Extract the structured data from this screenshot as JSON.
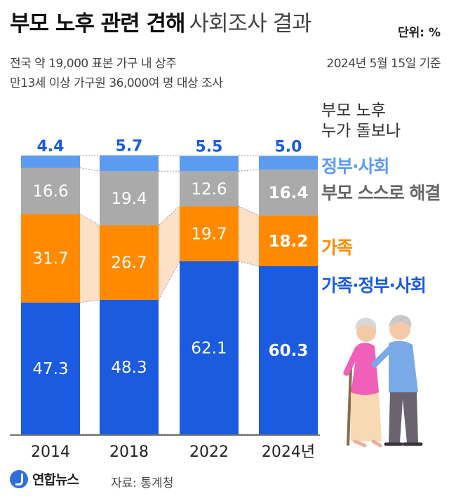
{
  "header": {
    "title_main": "부모 노후 관련 견해",
    "title_sub": "사회조사 결과",
    "unit": "단위: %",
    "desc_line1": "전국 약 19,000 표본 가구 내 상주",
    "desc_line2": "만13세 이상 가구원 36,000여 명 대상 조사",
    "date": "2024년 5월 15일 기준"
  },
  "legend": {
    "question_line1": "부모 노후",
    "question_line2": "누가 돌보나"
  },
  "colors": {
    "gov_society": "#5b9bf0",
    "self": "#aaaaaa",
    "family": "#ff8a00",
    "family_gov_society": "#1a5be0",
    "connector_family": "#fde0c6"
  },
  "chart_data": {
    "type": "bar",
    "stacked": true,
    "categories": [
      "2014",
      "2018",
      "2022",
      "2024년"
    ],
    "series": [
      {
        "name": "가족·정부·사회",
        "color": "#1a5be0",
        "values": [
          47.3,
          48.3,
          62.1,
          60.3
        ]
      },
      {
        "name": "가족",
        "color": "#ff8a00",
        "values": [
          31.7,
          26.7,
          19.7,
          18.2
        ]
      },
      {
        "name": "부모 스스로 해결",
        "color": "#aaaaaa",
        "values": [
          16.6,
          19.4,
          12.6,
          16.4
        ]
      },
      {
        "name": "정부·사회",
        "color": "#5b9bf0",
        "values": [
          4.4,
          5.7,
          5.5,
          5.0
        ]
      }
    ],
    "value_labels": [
      [
        "47.3",
        "48.3",
        "62.1",
        "60.3"
      ],
      [
        "31.7",
        "26.7",
        "19.7",
        "18.2"
      ],
      [
        "16.6",
        "19.4",
        "12.6",
        "16.4"
      ],
      [
        "4.4",
        "5.7",
        "5.5",
        "5.0"
      ]
    ],
    "ylim": [
      0,
      100
    ],
    "grid": false,
    "legend_position": "right"
  },
  "footer": {
    "logo_text": "연합뉴스",
    "source": "자료: 통계청"
  }
}
